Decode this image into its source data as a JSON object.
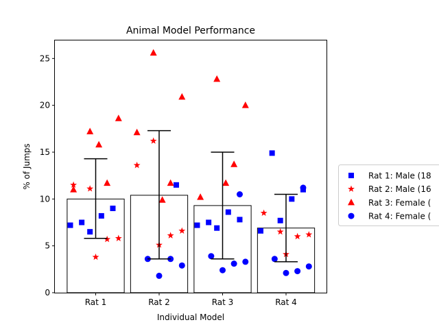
{
  "chart_data": {
    "type": "bar",
    "title": "Animal Model Performance",
    "xlabel": "Individual Model",
    "ylabel": "% of Jumps",
    "ylim": [
      0,
      27
    ],
    "yticks": [
      0,
      5,
      10,
      15,
      20,
      25
    ],
    "grid": false,
    "legend_position": "right, outside plot",
    "categories": [
      "Rat 1",
      "Rat 2",
      "Rat 3",
      "Rat 4"
    ],
    "bars": {
      "values": [
        10.0,
        10.4,
        9.3,
        6.9
      ],
      "error_low": [
        5.8,
        3.6,
        3.6,
        3.3
      ],
      "error_high": [
        14.3,
        17.3,
        15.0,
        10.5
      ],
      "fill": "#ffffff",
      "edge": "#000000"
    },
    "series": [
      {
        "name": "Rat 1: Male (18",
        "marker": "square",
        "color": "#0000ff",
        "points": [
          {
            "cat": 0,
            "offset": -0.4,
            "y": 7.2
          },
          {
            "cat": 0,
            "offset": -0.22,
            "y": 7.5
          },
          {
            "cat": 0,
            "offset": -0.09,
            "y": 6.5
          },
          {
            "cat": 0,
            "offset": 0.09,
            "y": 8.2
          },
          {
            "cat": 0,
            "offset": 0.27,
            "y": 9.0
          },
          {
            "cat": 1,
            "offset": 0.27,
            "y": 11.5
          },
          {
            "cat": 2,
            "offset": -0.4,
            "y": 7.2
          },
          {
            "cat": 2,
            "offset": -0.22,
            "y": 7.5
          },
          {
            "cat": 2,
            "offset": -0.09,
            "y": 6.9
          },
          {
            "cat": 2,
            "offset": 0.09,
            "y": 8.6
          },
          {
            "cat": 2,
            "offset": 0.27,
            "y": 7.8
          },
          {
            "cat": 3,
            "offset": -0.4,
            "y": 6.6
          },
          {
            "cat": 3,
            "offset": -0.22,
            "y": 14.9
          },
          {
            "cat": 3,
            "offset": -0.09,
            "y": 7.7
          },
          {
            "cat": 3,
            "offset": 0.09,
            "y": 10.0
          },
          {
            "cat": 3,
            "offset": 0.27,
            "y": 11.0
          }
        ]
      },
      {
        "name": "Rat 2: Male (16",
        "marker": "star",
        "color": "#ff0000",
        "points": [
          {
            "cat": 0,
            "offset": -0.35,
            "y": 11.5
          },
          {
            "cat": 0,
            "offset": -0.09,
            "y": 11.1
          },
          {
            "cat": 0,
            "offset": 0.0,
            "y": 3.8
          },
          {
            "cat": 0,
            "offset": 0.18,
            "y": 5.7
          },
          {
            "cat": 0,
            "offset": 0.36,
            "y": 5.8
          },
          {
            "cat": 1,
            "offset": -0.35,
            "y": 13.6
          },
          {
            "cat": 1,
            "offset": -0.09,
            "y": 16.2
          },
          {
            "cat": 1,
            "offset": 0.0,
            "y": 5.1
          },
          {
            "cat": 1,
            "offset": 0.18,
            "y": 6.1
          },
          {
            "cat": 1,
            "offset": 0.36,
            "y": 6.6
          },
          {
            "cat": 3,
            "offset": -0.35,
            "y": 8.5
          },
          {
            "cat": 3,
            "offset": -0.09,
            "y": 6.5
          },
          {
            "cat": 3,
            "offset": 0.0,
            "y": 4.1
          },
          {
            "cat": 3,
            "offset": 0.18,
            "y": 6.0
          },
          {
            "cat": 3,
            "offset": 0.36,
            "y": 6.2
          }
        ]
      },
      {
        "name": "Rat 3: Female (",
        "marker": "triangle",
        "color": "#ff0000",
        "points": [
          {
            "cat": 0,
            "offset": -0.35,
            "y": 11.0
          },
          {
            "cat": 0,
            "offset": -0.09,
            "y": 17.2
          },
          {
            "cat": 0,
            "offset": 0.05,
            "y": 15.8
          },
          {
            "cat": 0,
            "offset": 0.18,
            "y": 11.7
          },
          {
            "cat": 0,
            "offset": 0.36,
            "y": 18.6
          },
          {
            "cat": 1,
            "offset": -0.35,
            "y": 17.1
          },
          {
            "cat": 1,
            "offset": -0.09,
            "y": 25.6
          },
          {
            "cat": 1,
            "offset": 0.05,
            "y": 9.9
          },
          {
            "cat": 1,
            "offset": 0.18,
            "y": 11.7
          },
          {
            "cat": 1,
            "offset": 0.36,
            "y": 20.9
          },
          {
            "cat": 2,
            "offset": -0.35,
            "y": 10.2
          },
          {
            "cat": 2,
            "offset": -0.09,
            "y": 22.8
          },
          {
            "cat": 2,
            "offset": 0.05,
            "y": 11.7
          },
          {
            "cat": 2,
            "offset": 0.18,
            "y": 13.7
          },
          {
            "cat": 2,
            "offset": 0.36,
            "y": 20.0
          }
        ]
      },
      {
        "name": "Rat 4: Female (",
        "marker": "circle",
        "color": "#0000ff",
        "points": [
          {
            "cat": 1,
            "offset": -0.18,
            "y": 3.6
          },
          {
            "cat": 1,
            "offset": 0.0,
            "y": 1.8
          },
          {
            "cat": 1,
            "offset": 0.18,
            "y": 3.6
          },
          {
            "cat": 1,
            "offset": 0.36,
            "y": 2.9
          },
          {
            "cat": 2,
            "offset": -0.18,
            "y": 3.9
          },
          {
            "cat": 2,
            "offset": 0.0,
            "y": 2.4
          },
          {
            "cat": 2,
            "offset": 0.18,
            "y": 3.1
          },
          {
            "cat": 2,
            "offset": 0.27,
            "y": 10.5
          },
          {
            "cat": 2,
            "offset": 0.36,
            "y": 3.3
          },
          {
            "cat": 3,
            "offset": -0.18,
            "y": 3.6
          },
          {
            "cat": 3,
            "offset": 0.0,
            "y": 2.1
          },
          {
            "cat": 3,
            "offset": 0.18,
            "y": 2.3
          },
          {
            "cat": 3,
            "offset": 0.27,
            "y": 11.2
          },
          {
            "cat": 3,
            "offset": 0.36,
            "y": 2.8
          }
        ]
      }
    ]
  }
}
